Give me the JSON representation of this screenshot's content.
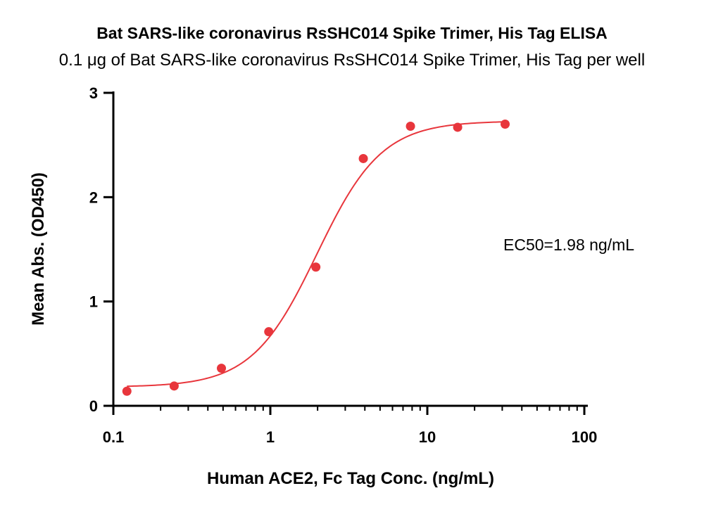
{
  "chart_data": {
    "type": "scatter",
    "title": "Bat SARS-like coronavirus RsSHC014 Spike Trimer, His Tag ELISA",
    "subtitle": "0.1 μg of Bat SARS-like coronavirus RsSHC014 Spike Trimer, His Tag per well",
    "xlabel": "Human ACE2, Fc Tag Conc. (ng/mL)",
    "ylabel": "Mean Abs. (OD450)",
    "x_scale": "log",
    "xlim": [
      0.1,
      100
    ],
    "ylim": [
      0,
      3
    ],
    "x_ticks": [
      0.1,
      1,
      10,
      100
    ],
    "x_tick_labels": [
      "0.1",
      "1",
      "10",
      "100"
    ],
    "y_ticks": [
      0,
      1,
      2,
      3
    ],
    "y_tick_labels": [
      "0",
      "1",
      "2",
      "3"
    ],
    "grid": false,
    "annotation": "EC50=1.98 ng/mL",
    "color": "#e8363c",
    "series": [
      {
        "x": [
          0.122,
          0.244,
          0.488,
          0.977,
          1.95,
          3.91,
          7.81,
          15.6,
          31.3
        ],
        "y": [
          0.14,
          0.19,
          0.36,
          0.71,
          1.33,
          2.37,
          2.68,
          2.67,
          2.7
        ]
      }
    ],
    "fit": {
      "type": "4PL",
      "bottom": 0.18,
      "top": 2.73,
      "ec50": 1.98,
      "hill": 2.1,
      "x_range": [
        0.122,
        31.3
      ]
    }
  }
}
